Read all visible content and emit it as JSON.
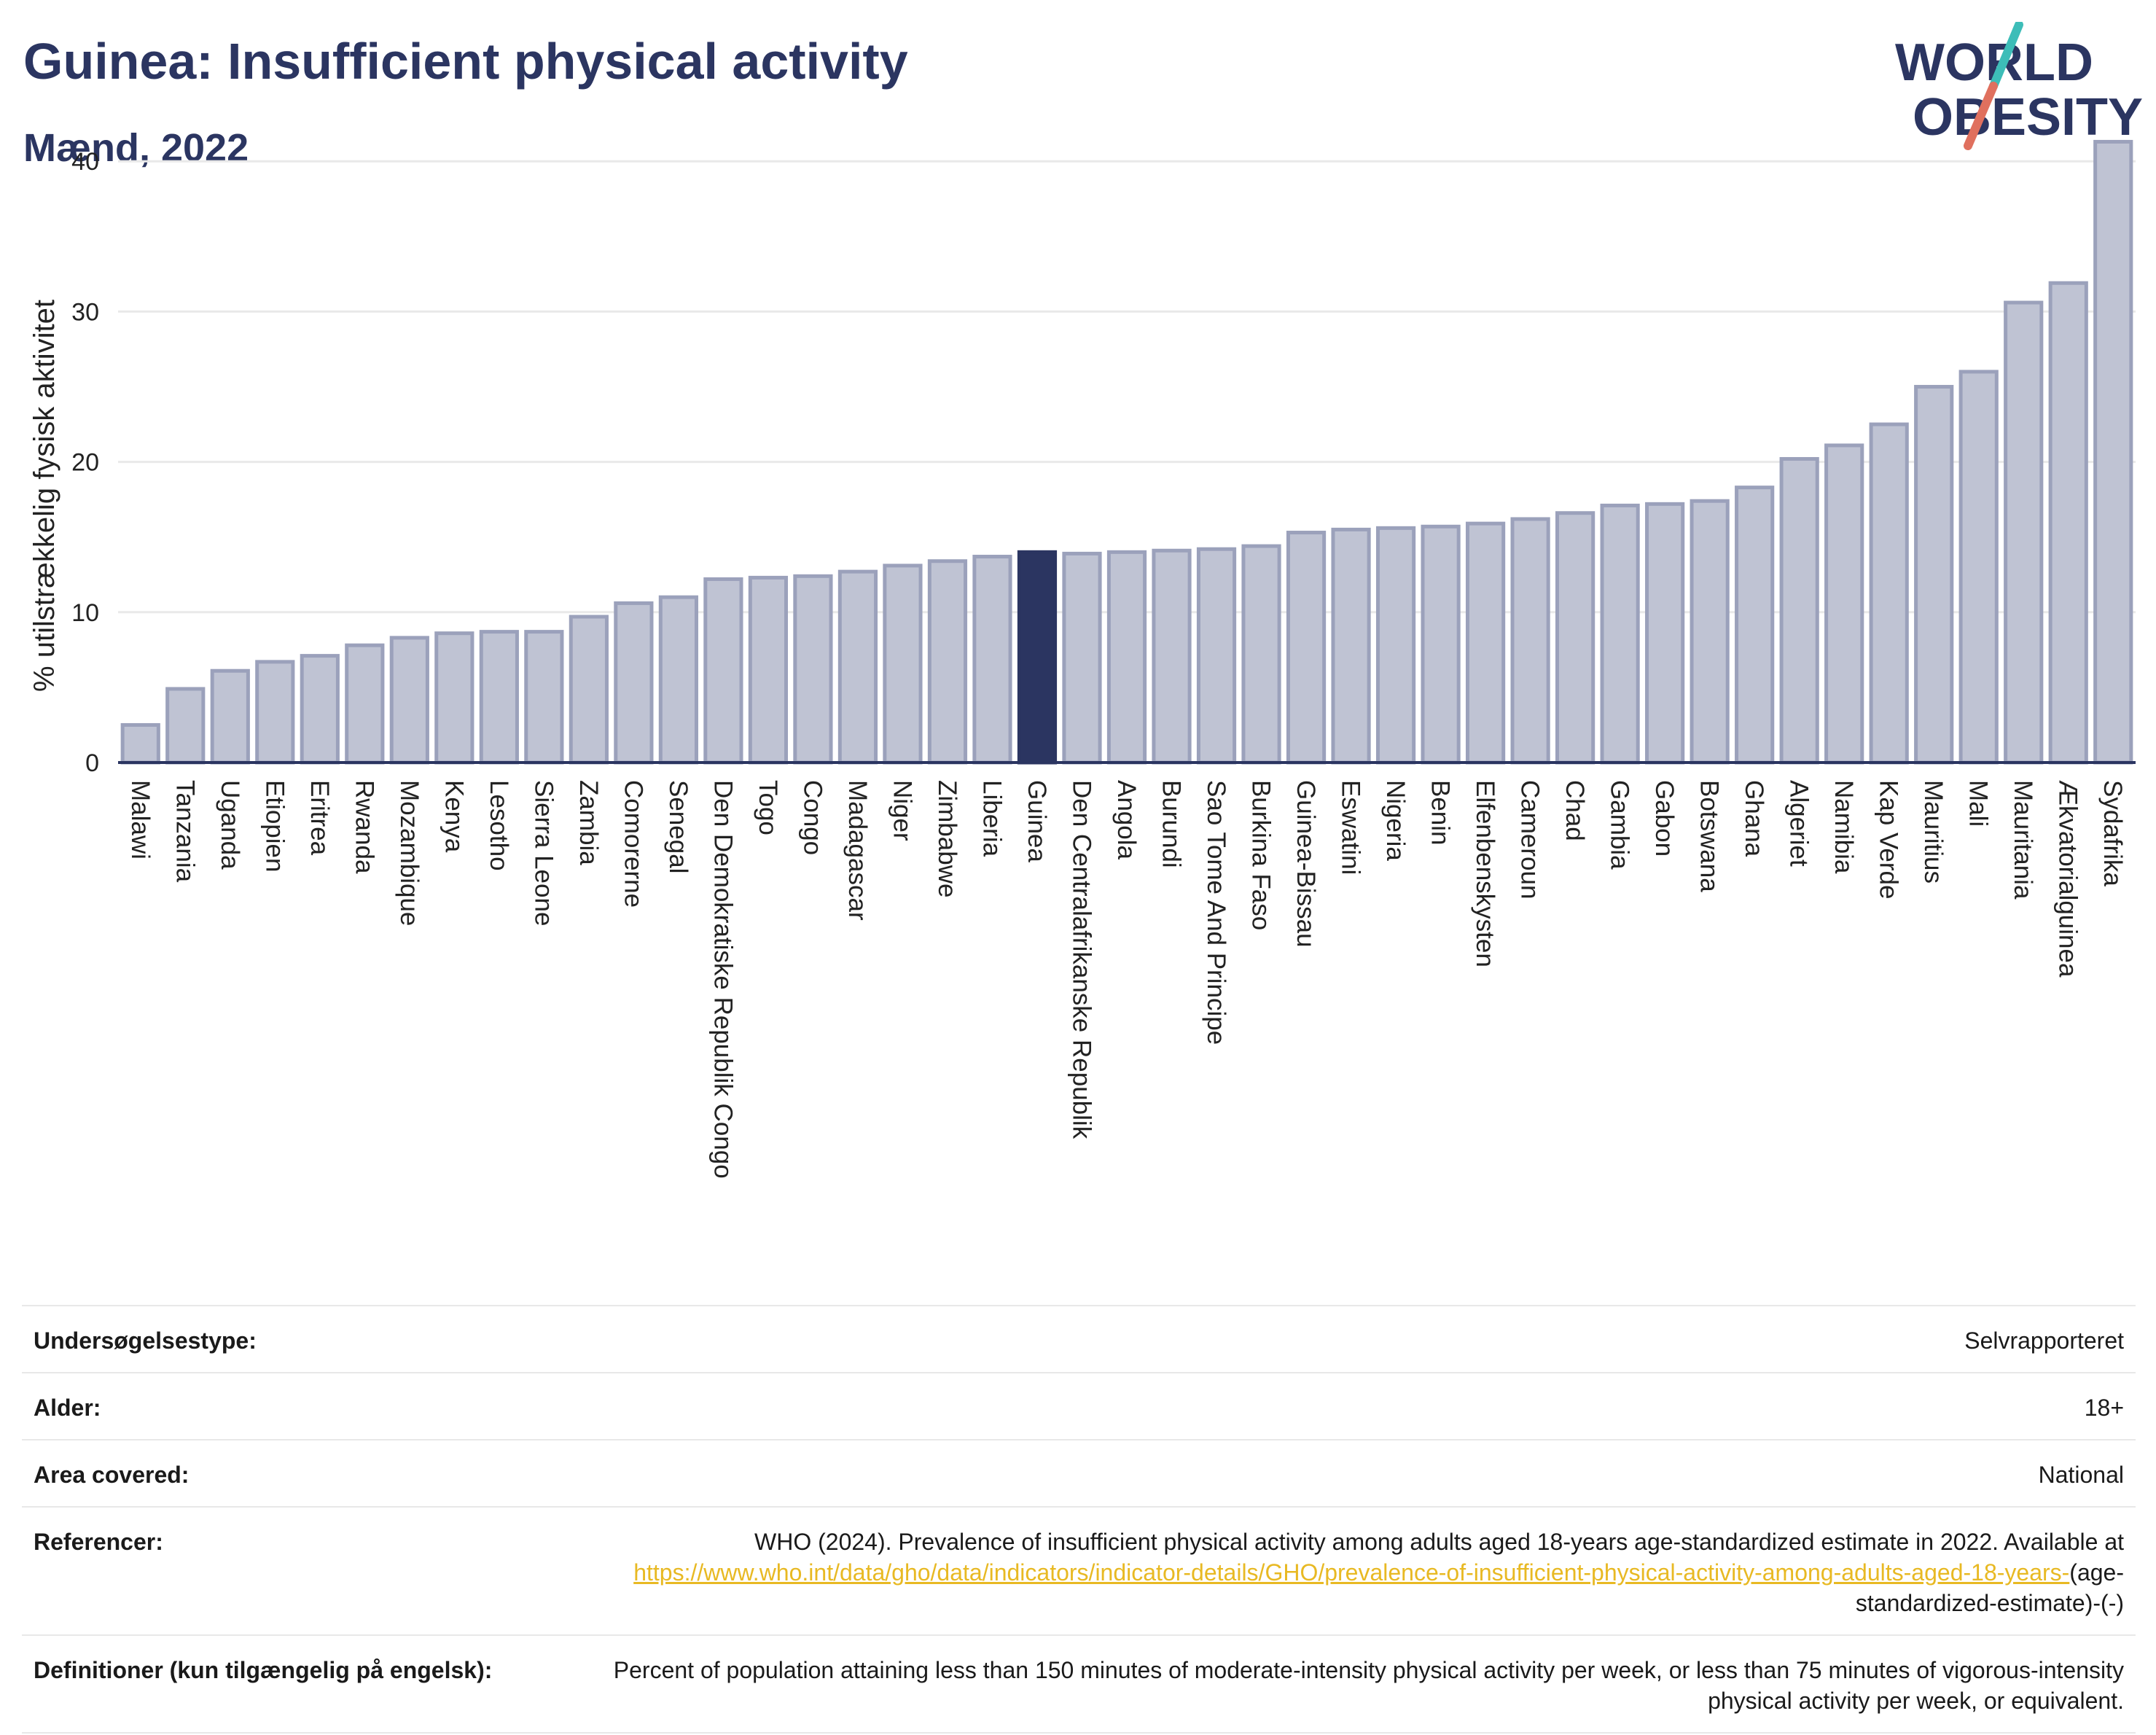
{
  "header": {
    "title": "Guinea: Insufficient physical activity",
    "subtitle": "Mænd, 2022"
  },
  "logo": {
    "line1": "WORLD",
    "line2": "OBESITY",
    "icon": "world-obesity-logo",
    "colors": {
      "text": "#2b3561",
      "slash_top": "#3dbdb8",
      "slash_bottom": "#e0705e"
    }
  },
  "colors": {
    "bar": "#bfc3d3",
    "bar_border": "#9ba1bb",
    "highlight": "#2b3561",
    "grid": "#e9e9e9",
    "axis": "#2b3561"
  },
  "chart_data": {
    "type": "bar",
    "ylabel": "% utilstrækkelig fysisk aktivitet",
    "ylim": [
      0,
      42
    ],
    "yticks": [
      0,
      10,
      20,
      30,
      40
    ],
    "grid": true,
    "highlight": "Guinea",
    "categories": [
      "Malawi",
      "Tanzania",
      "Uganda",
      "Etiopien",
      "Eritrea",
      "Rwanda",
      "Mozambique",
      "Kenya",
      "Lesotho",
      "Sierra Leone",
      "Zambia",
      "Comorerne",
      "Senegal",
      "Den Demokratiske Republik Congo",
      "Togo",
      "Congo",
      "Madagascar",
      "Niger",
      "Zimbabwe",
      "Liberia",
      "Guinea",
      "Den Centralafrikanske Republik",
      "Angola",
      "Burundi",
      "Sao Tome And Principe",
      "Burkina Faso",
      "Guinea-Bissau",
      "Eswatini",
      "Nigeria",
      "Benin",
      "Elfenbenskysten",
      "Cameroun",
      "Chad",
      "Gambia",
      "Gabon",
      "Botswana",
      "Ghana",
      "Algeriet",
      "Namibia",
      "Kap Verde",
      "Mauritius",
      "Mali",
      "Mauritania",
      "Ækvatorialguinea",
      "Sydafrika"
    ],
    "values": [
      2.5,
      4.9,
      6.1,
      6.7,
      7.1,
      7.8,
      8.3,
      8.6,
      8.7,
      8.7,
      9.7,
      10.6,
      11.0,
      12.2,
      12.3,
      12.4,
      12.7,
      13.1,
      13.4,
      13.7,
      14.0,
      13.9,
      14.0,
      14.1,
      14.2,
      14.4,
      15.3,
      15.5,
      15.6,
      15.7,
      15.9,
      16.2,
      16.6,
      17.1,
      17.2,
      17.4,
      18.3,
      20.2,
      21.1,
      22.5,
      25.0,
      26.0,
      30.6,
      31.9,
      41.3
    ]
  },
  "info": {
    "rows": [
      {
        "key": "Undersøgelsestype:",
        "value": "Selvrapporteret"
      },
      {
        "key": "Alder:",
        "value": "18+"
      },
      {
        "key": "Area covered:",
        "value": "National"
      },
      {
        "key": "Referencer:",
        "value": "WHO (2024). Prevalence of insufficient physical activity among adults aged 18-years age-standardized estimate in 2022. Available at",
        "link": "https://www.who.int/data/gho/data/indicators/indicator-details/GHO/prevalence-of-insufficient-physical-activity-among-adults-aged-18-years-",
        "suffix": "(age-standardized-estimate)-(-)"
      },
      {
        "key": "Definitioner (kun tilgængelig på engelsk):",
        "value": "Percent of population attaining less than 150 minutes of moderate-intensity physical activity per week, or less than 75 minutes of vigorous-intensity physical activity per week, or equivalent."
      }
    ]
  }
}
